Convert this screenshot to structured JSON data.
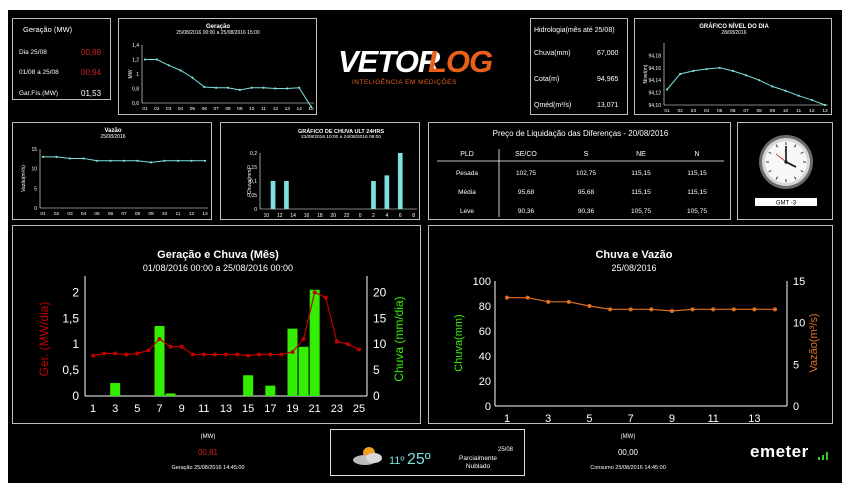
{
  "summary": {
    "title": "Geração (MW)",
    "rows": [
      {
        "label": "Dia 25/08",
        "value": "00,89",
        "color": "#d02020"
      },
      {
        "label": "01/08 a 25/08",
        "value": "00,94",
        "color": "#d02020"
      },
      {
        "label": "Gar.Fís.(MW)",
        "value": "01,53",
        "color": "#ffffff"
      }
    ]
  },
  "logo": {
    "name": "VETORLOG",
    "subtitle": "INTELIGÊNCIA EM MEDIÇÕES"
  },
  "hydro": {
    "title": "Hidrologia(mês até 25/08)",
    "rows": [
      {
        "label": "Chuva(mm)",
        "value": "67,000"
      },
      {
        "label": "Cota(m)",
        "value": "94,965"
      },
      {
        "label": "Qméd(m³/s)",
        "value": "13,071"
      }
    ]
  },
  "pld": {
    "title": "Preço de Liquidação das Diferenças - 20/08/2016",
    "headers": [
      "PLD",
      "SE/CO",
      "S",
      "NE",
      "N"
    ],
    "rows": [
      [
        "Pesada",
        "102,75",
        "102,75",
        "115,15",
        "115,15"
      ],
      [
        "Média",
        "95,68",
        "95,68",
        "115,15",
        "115,15"
      ],
      [
        "Leve",
        "90,36",
        "90,36",
        "105,75",
        "105,75"
      ]
    ]
  },
  "clock": {
    "label": "GMT -3"
  },
  "footer": {
    "left": {
      "unit": "(MW)",
      "value": "00,81",
      "caption": "Geração 25/08/2016 14:45:00"
    },
    "weather": {
      "temp_min": "11º",
      "temp_max": "25º",
      "date": "25/08",
      "condition": "Parcialmente Nublado"
    },
    "right": {
      "unit": "(MW)",
      "value": "00,00",
      "caption": "Consumo 25/08/2016 14:45:00"
    },
    "brand": "emeter"
  },
  "chart_data": [
    {
      "id": "geracao_small",
      "type": "line",
      "title": "Geração",
      "subtitle": "25/08/2016 00:00 a 25/08/2016 15:00",
      "ylabel": "MW",
      "x": [
        "01",
        "02",
        "03",
        "04",
        "05",
        "06",
        "07",
        "08",
        "09",
        "10",
        "11",
        "12",
        "13",
        "14",
        "15"
      ],
      "values": [
        1.2,
        1.2,
        1.12,
        1.05,
        0.95,
        0.82,
        0.81,
        0.81,
        0.78,
        0.81,
        0.81,
        0.8,
        0.8,
        0.81,
        0.55
      ],
      "ylim": [
        0.6,
        1.4
      ],
      "yticks": [
        "0,6",
        "0,8",
        "1",
        "1,2",
        "1,4"
      ],
      "color": "#7ee0e0"
    },
    {
      "id": "nivel",
      "type": "line",
      "title": "GRÁFICO NÍVEL DO DIA",
      "subtitle": "28/08/2016",
      "ylabel": "Nível(m)",
      "x": [
        "01",
        "02",
        "03",
        "04",
        "05",
        "06",
        "07",
        "08",
        "09",
        "10",
        "11",
        "12",
        "13"
      ],
      "values": [
        94.125,
        94.15,
        94.155,
        94.158,
        94.16,
        94.155,
        94.148,
        94.14,
        94.13,
        94.123,
        94.115,
        94.108,
        94.1
      ],
      "ylim": [
        94.1,
        94.2
      ],
      "yticks": [
        "94,10",
        "94,12",
        "94,14",
        "94,16",
        "94,18"
      ],
      "color": "#7ee0e0"
    },
    {
      "id": "vazao_small",
      "type": "line",
      "title": "Vazão",
      "subtitle": "25/08/2016",
      "ylabel": "Vazão(m³/s)",
      "x": [
        "01",
        "02",
        "03",
        "04",
        "05",
        "06",
        "07",
        "08",
        "09",
        "10",
        "11",
        "12",
        "13"
      ],
      "values": [
        13,
        13,
        12.6,
        12.6,
        12,
        12,
        12,
        12,
        11.6,
        12,
        12,
        12,
        12
      ],
      "ylim": [
        0,
        15
      ],
      "yticks": [
        "0",
        "5",
        "10",
        "15"
      ],
      "color": "#7ee0e0"
    },
    {
      "id": "chuva24",
      "type": "bar",
      "title": "GRÁFICO DE CHUVA ULT 24HRS",
      "subtitle": "23/08/2016 10:00 a 24/08/2016 08:00",
      "ylabel": "Chuva(mm)",
      "categories": [
        "10",
        "11",
        "12",
        "13",
        "14",
        "15",
        "16",
        "17",
        "18",
        "19",
        "20",
        "21",
        "22",
        "23",
        "0",
        "1",
        "2",
        "3",
        "4",
        "5",
        "6",
        "7",
        "8"
      ],
      "values": [
        0,
        0.1,
        0,
        0.1,
        0,
        0,
        0,
        0,
        0,
        0,
        0,
        0,
        0,
        0,
        0,
        0,
        0.1,
        0,
        0.12,
        0,
        0.2,
        0,
        0
      ],
      "ylim": [
        0,
        0.2
      ],
      "yticks": [
        "0",
        "0,05",
        "0,1",
        "0,15",
        "0,2"
      ],
      "xticks": [
        "10",
        "12",
        "14",
        "16",
        "18",
        "20",
        "22",
        "0",
        "2",
        "4",
        "6",
        "8"
      ],
      "color": "#7ee0e0"
    },
    {
      "id": "geracao_chuva_mes",
      "type": "bar+line",
      "title": "Geração e Chuva (Mês)",
      "subtitle": "01/08/2016 00:00 a 25/08/2016 00:00",
      "ylabel": "Ger. (MW/dia)",
      "y2label": "Chuva (mm/dia)",
      "x": [
        1,
        2,
        3,
        4,
        5,
        6,
        7,
        8,
        9,
        10,
        11,
        12,
        13,
        14,
        15,
        16,
        17,
        18,
        19,
        20,
        21,
        22,
        23,
        24,
        25
      ],
      "series": [
        {
          "name": "Geração",
          "axis": "left",
          "type": "line",
          "color": "#c00000",
          "values": [
            0.78,
            0.82,
            0.82,
            0.8,
            0.82,
            0.88,
            1.1,
            0.95,
            0.95,
            0.8,
            0.8,
            0.8,
            0.8,
            0.8,
            0.78,
            0.8,
            0.8,
            0.8,
            0.85,
            1.1,
            2.0,
            1.9,
            1.05,
            1.0,
            0.9
          ]
        },
        {
          "name": "Chuva",
          "axis": "right",
          "type": "bar",
          "color": "#33ee00",
          "values": [
            0,
            0,
            2.5,
            0,
            0,
            0,
            13.5,
            0.5,
            0,
            0,
            0,
            0,
            0,
            0,
            4,
            0,
            2,
            0,
            13,
            9.5,
            20.5,
            0,
            0,
            0,
            0
          ]
        }
      ],
      "ylim": [
        0,
        2.2
      ],
      "y2lim": [
        0,
        22
      ],
      "yticks": [
        "0",
        "0,5",
        "1",
        "1,5",
        "2"
      ],
      "y2ticks": [
        "0",
        "5",
        "10",
        "15",
        "20"
      ],
      "xticks": [
        "1",
        "3",
        "5",
        "7",
        "9",
        "11",
        "13",
        "15",
        "17",
        "19",
        "21",
        "23",
        "25"
      ]
    },
    {
      "id": "chuva_vazao",
      "type": "line",
      "title": "Chuva e Vazão",
      "subtitle": "25/08/2016",
      "ylabel": "Chuva(mm)",
      "y2label": "Vazão(m³/s)",
      "x": [
        1,
        2,
        3,
        4,
        5,
        6,
        7,
        8,
        9,
        10,
        11,
        12,
        13,
        14
      ],
      "series": [
        {
          "name": "Vazão",
          "axis": "right",
          "color": "#e07020",
          "values": [
            13,
            13,
            12.5,
            12.5,
            12,
            11.6,
            11.6,
            11.6,
            11.4,
            11.6,
            11.6,
            11.6,
            11.6,
            11.6
          ]
        }
      ],
      "ylim": [
        0,
        100
      ],
      "y2lim": [
        0,
        15
      ],
      "yticks": [
        "0",
        "20",
        "40",
        "60",
        "80",
        "100"
      ],
      "y2ticks": [
        "0",
        "5",
        "10",
        "15"
      ],
      "xticks": [
        "1",
        "3",
        "5",
        "7",
        "9",
        "11",
        "13"
      ]
    }
  ]
}
